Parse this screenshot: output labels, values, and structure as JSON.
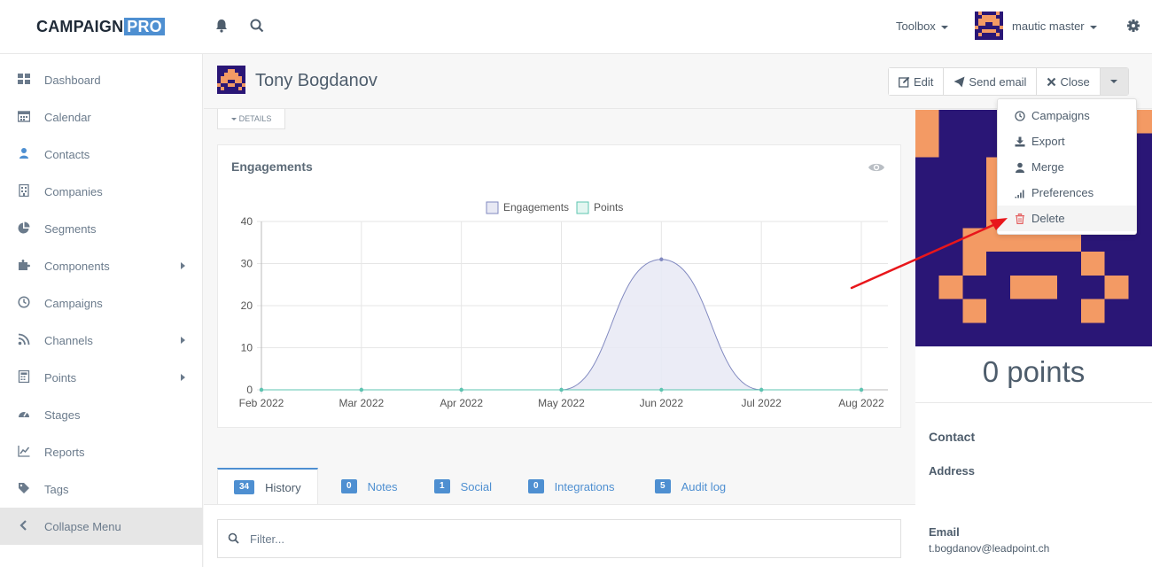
{
  "brand": {
    "name": "CAMPAIGN",
    "suffix": "PRO"
  },
  "topbar": {
    "toolbox_label": "Toolbox",
    "user_name": "mautic master",
    "icons": [
      "bell-icon",
      "search-icon",
      "gear-icon"
    ]
  },
  "sidebar": {
    "items": [
      {
        "label": "Dashboard",
        "icon": "dashboard-icon"
      },
      {
        "label": "Calendar",
        "icon": "calendar-icon"
      },
      {
        "label": "Contacts",
        "icon": "user-icon"
      },
      {
        "label": "Companies",
        "icon": "building-icon"
      },
      {
        "label": "Segments",
        "icon": "pie-icon"
      },
      {
        "label": "Components",
        "icon": "puzzle-icon"
      },
      {
        "label": "Campaigns",
        "icon": "clock-icon"
      },
      {
        "label": "Channels",
        "icon": "rss-icon"
      },
      {
        "label": "Points",
        "icon": "calculator-icon"
      },
      {
        "label": "Stages",
        "icon": "tachometer-icon"
      },
      {
        "label": "Reports",
        "icon": "line-chart-icon"
      },
      {
        "label": "Tags",
        "icon": "tag-icon"
      },
      {
        "label": "Collapse Menu",
        "icon": "chevron-left-icon"
      }
    ]
  },
  "header": {
    "contact_name": "Tony Bogdanov",
    "buttons": {
      "edit": "Edit",
      "send_email": "Send email",
      "close": "Close"
    }
  },
  "details_toggle": "DETAILS",
  "dropdown": {
    "items": [
      {
        "label": "Campaigns",
        "icon": "clock-icon"
      },
      {
        "label": "Export",
        "icon": "download-icon"
      },
      {
        "label": "Merge",
        "icon": "user-icon"
      },
      {
        "label": "Preferences",
        "icon": "signal-icon"
      },
      {
        "label": "Delete",
        "icon": "trash-icon"
      }
    ]
  },
  "engagements": {
    "title": "Engagements"
  },
  "chart_data": {
    "type": "line",
    "categories": [
      "Feb 2022",
      "Mar 2022",
      "Apr 2022",
      "May 2022",
      "Jun 2022",
      "Jul 2022",
      "Aug 2022"
    ],
    "series": [
      {
        "name": "Engagements",
        "values": [
          0,
          0,
          0,
          0,
          31,
          0,
          0
        ],
        "color": "#8189c0",
        "fill": "#e8e9f4"
      },
      {
        "name": "Points",
        "values": [
          0,
          0,
          0,
          0,
          0,
          0,
          0
        ],
        "color": "#5dc5b0",
        "fill": "#e3f6f1"
      }
    ],
    "yticks": [
      0,
      10,
      20,
      30,
      40
    ],
    "ylim": [
      0,
      40
    ],
    "grid": true,
    "legend": "top-center"
  },
  "profile": {
    "points_text": "0 points",
    "contact_heading": "Contact",
    "address_label": "Address",
    "email_label": "Email",
    "email_value": "t.bogdanov@leadpoint.ch"
  },
  "tabs": [
    {
      "count": "34",
      "label": "History"
    },
    {
      "count": "0",
      "label": "Notes"
    },
    {
      "count": "1",
      "label": "Social"
    },
    {
      "count": "0",
      "label": "Integrations"
    },
    {
      "count": "5",
      "label": "Audit log"
    }
  ],
  "filter": {
    "placeholder": "Filter..."
  },
  "colors": {
    "accent": "#4e8fd1",
    "avatar_bg": "#2a1676",
    "avatar_fg": "#f39a64",
    "annotation": "#e8161b"
  }
}
